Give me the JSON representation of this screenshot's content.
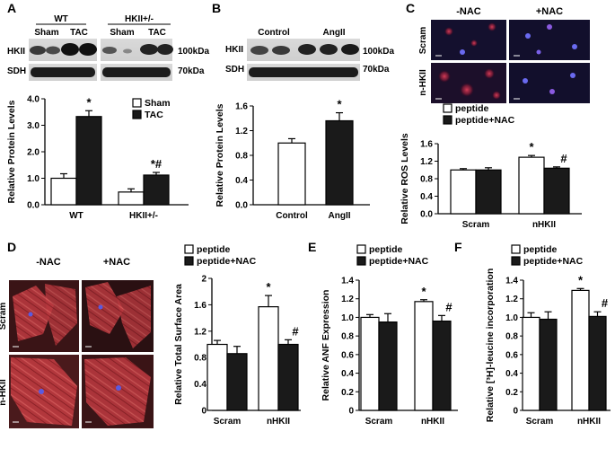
{
  "figure": {
    "panels": {
      "A": {
        "letter": "A",
        "groups": [
          "WT",
          "HKII+/-"
        ],
        "lanes": [
          "Sham",
          "TAC",
          "Sham",
          "TAC"
        ],
        "blots": [
          {
            "label": "HKII",
            "size": "100kDa"
          },
          {
            "label": "SDH",
            "size": "70kDa"
          }
        ]
      },
      "B": {
        "letter": "B",
        "lanes": [
          "Control",
          "AngII"
        ],
        "blots": [
          {
            "label": "HKII",
            "size": "100kDa"
          },
          {
            "label": "SDH",
            "size": "70kDa"
          }
        ]
      },
      "C": {
        "letter": "C",
        "columns": [
          "-NAC",
          "+NAC"
        ],
        "rows": [
          "Scram",
          "n-HKII"
        ]
      },
      "D": {
        "letter": "D",
        "columns": [
          "-NAC",
          "+NAC"
        ],
        "rows": [
          "Scram",
          "n-HKII"
        ]
      },
      "E": {
        "letter": "E"
      },
      "F": {
        "letter": "F"
      }
    }
  },
  "chart_data": [
    {
      "id": "A",
      "type": "bar",
      "categories": [
        "WT",
        "HKII+/-"
      ],
      "series": [
        {
          "name": "Sham",
          "values": [
            1.0,
            0.48
          ],
          "errors": [
            0.17,
            0.12
          ]
        },
        {
          "name": "TAC",
          "values": [
            3.33,
            1.12
          ],
          "errors": [
            0.22,
            0.1
          ]
        }
      ],
      "ylabel": "Relative Protein Levels",
      "ylim": [
        0,
        4.0
      ],
      "yticks": [
        "0.0",
        "1.0",
        "2.0",
        "3.0",
        "4.0"
      ],
      "annotations": [
        {
          "category": 0,
          "series": 1,
          "text": "*"
        },
        {
          "category": 1,
          "series": 1,
          "text": "*#"
        }
      ],
      "legend": "top-right"
    },
    {
      "id": "B",
      "type": "bar",
      "categories": [
        "Control",
        "AngII"
      ],
      "series": [
        {
          "values": [
            1.0,
            1.36
          ],
          "errors": [
            0.07,
            0.13
          ],
          "colors": [
            "#ffffff",
            "#1a1a1a"
          ]
        }
      ],
      "ylabel": "Relative Protein Levels",
      "ylim": [
        0,
        1.6
      ],
      "yticks": [
        "0.0",
        "0.4",
        "0.8",
        "1.2",
        "1.6"
      ],
      "annotations": [
        {
          "category": 1,
          "series": 0,
          "text": "*"
        }
      ]
    },
    {
      "id": "C",
      "type": "bar",
      "categories": [
        "Scram",
        "nHKII"
      ],
      "series": [
        {
          "name": "peptide",
          "values": [
            1.0,
            1.29
          ],
          "errors": [
            0.03,
            0.04
          ]
        },
        {
          "name": "peptide+NAC",
          "values": [
            1.0,
            1.04
          ],
          "errors": [
            0.05,
            0.03
          ]
        }
      ],
      "ylabel": "Relative ROS Levels",
      "ylim": [
        0,
        1.6
      ],
      "yticks": [
        "0.0",
        "0.4",
        "0.8",
        "1.2",
        "1.6"
      ],
      "annotations": [
        {
          "category": 1,
          "series": 0,
          "text": "*"
        },
        {
          "category": 1,
          "series": 1,
          "text": "#"
        }
      ],
      "legend": "top-left"
    },
    {
      "id": "D",
      "type": "bar",
      "categories": [
        "Scram",
        "nHKII"
      ],
      "series": [
        {
          "name": "peptide",
          "values": [
            1.0,
            1.57
          ],
          "errors": [
            0.06,
            0.17
          ]
        },
        {
          "name": "peptide+NAC",
          "values": [
            0.86,
            1.0
          ],
          "errors": [
            0.11,
            0.07
          ]
        }
      ],
      "ylabel": "Relative Total Surface Area",
      "ylim": [
        0,
        2.0
      ],
      "yticks": [
        "0",
        "0.4",
        "0.8",
        "1.2",
        "1.6",
        "2"
      ],
      "annotations": [
        {
          "category": 1,
          "series": 0,
          "text": "*"
        },
        {
          "category": 1,
          "series": 1,
          "text": "#"
        }
      ],
      "legend": "top-left"
    },
    {
      "id": "E",
      "type": "bar",
      "categories": [
        "Scram",
        "nHKII"
      ],
      "series": [
        {
          "name": "peptide",
          "values": [
            1.0,
            1.17
          ],
          "errors": [
            0.03,
            0.02
          ]
        },
        {
          "name": "peptide+NAC",
          "values": [
            0.95,
            0.96
          ],
          "errors": [
            0.09,
            0.06
          ]
        }
      ],
      "ylabel": "Relative ANF Expression",
      "ylim": [
        0,
        1.4
      ],
      "yticks": [
        "0",
        "0.2",
        "0.4",
        "0.6",
        "0.8",
        "1.0",
        "1.2",
        "1.4"
      ],
      "annotations": [
        {
          "category": 1,
          "series": 0,
          "text": "*"
        },
        {
          "category": 1,
          "series": 1,
          "text": "#"
        }
      ],
      "legend": "top-left"
    },
    {
      "id": "F",
      "type": "bar",
      "categories": [
        "Scram",
        "nHKII"
      ],
      "series": [
        {
          "name": "peptide",
          "values": [
            1.0,
            1.29
          ],
          "errors": [
            0.05,
            0.02
          ]
        },
        {
          "name": "peptide+NAC",
          "values": [
            0.98,
            1.01
          ],
          "errors": [
            0.08,
            0.05
          ]
        }
      ],
      "ylabel": "Relative [³H]-leucine incorporation",
      "ylim": [
        0,
        1.4
      ],
      "yticks": [
        "0",
        "0.2",
        "0.4",
        "0.6",
        "0.8",
        "1.0",
        "1.2",
        "1.4"
      ],
      "annotations": [
        {
          "category": 1,
          "series": 0,
          "text": "*"
        },
        {
          "category": 1,
          "series": 1,
          "text": "#"
        }
      ],
      "legend": "top-left"
    }
  ]
}
